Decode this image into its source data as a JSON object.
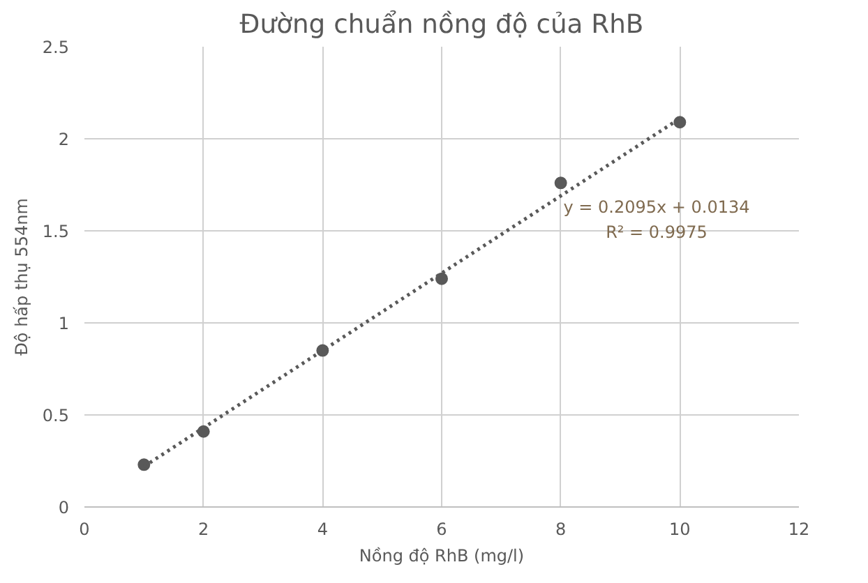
{
  "chart_data": {
    "type": "scatter",
    "title": "Đường chuẩn nồng độ của RhB",
    "xlabel": "Nồng độ RhB (mg/l)",
    "ylabel": "Độ hấp thụ 554nm",
    "series": [
      {
        "color": "#595959",
        "x": [
          1,
          2,
          4,
          6,
          8,
          10
        ],
        "values": [
          0.23,
          0.41,
          0.85,
          1.24,
          1.76,
          2.09
        ],
        "marker": "circle"
      },
      {
        "type": "line",
        "color": "#595959",
        "x": [
          1,
          10
        ],
        "values": [
          0.22,
          2.11
        ],
        "line_style": "dotted",
        "marker": "none"
      }
    ],
    "annotations": [
      "y = 0.2095x + 0.0134",
      "R² = 0.9975"
    ],
    "xlim": [
      0,
      12
    ],
    "xticks": [
      0,
      2,
      4,
      6,
      8,
      10,
      12
    ],
    "ylim": [
      0,
      2.5
    ],
    "yticks": [
      0,
      0.5,
      1,
      1.5,
      2,
      2.5
    ],
    "grid": true
  }
}
